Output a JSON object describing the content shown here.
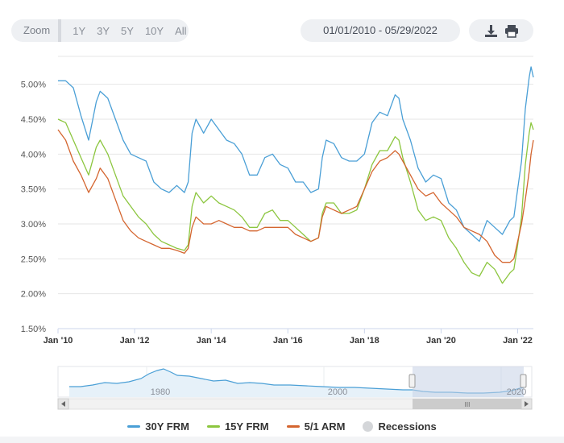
{
  "toolbar": {
    "zoom_label": "Zoom",
    "zoom_options": [
      "1Y",
      "3Y",
      "5Y",
      "10Y",
      "All"
    ],
    "date_range": "01/01/2010 - 05/29/2022",
    "download_icon": "download-icon",
    "print_icon": "print-icon"
  },
  "navigator": {
    "year_labels": [
      "1980",
      "2000",
      "2020"
    ],
    "scrollbar_grip": "III"
  },
  "legend": {
    "recessions_label": "Recessions",
    "recessions_color": "#d4d6d9"
  },
  "chart_data": {
    "type": "line",
    "title": "",
    "xlabel": "",
    "ylabel": "",
    "x_range": [
      2010.0,
      2022.41
    ],
    "ylim": [
      1.5,
      5.4
    ],
    "yticks": [
      1.5,
      2.0,
      2.5,
      3.0,
      3.5,
      4.0,
      4.5,
      5.0
    ],
    "ytick_labels": [
      "1.50%",
      "2.00%",
      "2.50%",
      "3.00%",
      "3.50%",
      "4.00%",
      "4.50%",
      "5.00%"
    ],
    "xticks": [
      2010,
      2012,
      2014,
      2016,
      2018,
      2020,
      2022
    ],
    "xtick_labels": [
      "Jan '10",
      "Jan '12",
      "Jan '14",
      "Jan '16",
      "Jan '18",
      "Jan '20",
      "Jan '22"
    ],
    "grid": true,
    "series": [
      {
        "name": "30Y FRM",
        "color": "#4a9fd6",
        "points": [
          [
            2010.0,
            5.05
          ],
          [
            2010.2,
            5.05
          ],
          [
            2010.4,
            4.95
          ],
          [
            2010.6,
            4.55
          ],
          [
            2010.8,
            4.2
          ],
          [
            2011.0,
            4.75
          ],
          [
            2011.1,
            4.9
          ],
          [
            2011.3,
            4.8
          ],
          [
            2011.5,
            4.5
          ],
          [
            2011.7,
            4.2
          ],
          [
            2011.9,
            4.0
          ],
          [
            2012.1,
            3.95
          ],
          [
            2012.3,
            3.9
          ],
          [
            2012.5,
            3.6
          ],
          [
            2012.7,
            3.5
          ],
          [
            2012.9,
            3.45
          ],
          [
            2013.1,
            3.55
          ],
          [
            2013.3,
            3.45
          ],
          [
            2013.4,
            3.6
          ],
          [
            2013.5,
            4.3
          ],
          [
            2013.6,
            4.5
          ],
          [
            2013.8,
            4.3
          ],
          [
            2014.0,
            4.5
          ],
          [
            2014.2,
            4.35
          ],
          [
            2014.4,
            4.2
          ],
          [
            2014.6,
            4.15
          ],
          [
            2014.8,
            4.0
          ],
          [
            2015.0,
            3.7
          ],
          [
            2015.2,
            3.7
          ],
          [
            2015.4,
            3.95
          ],
          [
            2015.6,
            4.0
          ],
          [
            2015.8,
            3.85
          ],
          [
            2016.0,
            3.8
          ],
          [
            2016.2,
            3.6
          ],
          [
            2016.4,
            3.6
          ],
          [
            2016.6,
            3.45
          ],
          [
            2016.8,
            3.5
          ],
          [
            2016.9,
            3.95
          ],
          [
            2017.0,
            4.2
          ],
          [
            2017.2,
            4.15
          ],
          [
            2017.4,
            3.95
          ],
          [
            2017.6,
            3.9
          ],
          [
            2017.8,
            3.9
          ],
          [
            2018.0,
            4.0
          ],
          [
            2018.2,
            4.45
          ],
          [
            2018.4,
            4.6
          ],
          [
            2018.6,
            4.55
          ],
          [
            2018.8,
            4.85
          ],
          [
            2018.9,
            4.8
          ],
          [
            2019.0,
            4.5
          ],
          [
            2019.2,
            4.2
          ],
          [
            2019.4,
            3.8
          ],
          [
            2019.6,
            3.6
          ],
          [
            2019.8,
            3.7
          ],
          [
            2020.0,
            3.65
          ],
          [
            2020.2,
            3.3
          ],
          [
            2020.4,
            3.2
          ],
          [
            2020.6,
            2.95
          ],
          [
            2020.8,
            2.85
          ],
          [
            2021.0,
            2.75
          ],
          [
            2021.2,
            3.05
          ],
          [
            2021.4,
            2.95
          ],
          [
            2021.6,
            2.85
          ],
          [
            2021.8,
            3.05
          ],
          [
            2021.9,
            3.1
          ],
          [
            2022.0,
            3.5
          ],
          [
            2022.1,
            3.9
          ],
          [
            2022.2,
            4.65
          ],
          [
            2022.3,
            5.1
          ],
          [
            2022.35,
            5.25
          ],
          [
            2022.41,
            5.1
          ]
        ]
      },
      {
        "name": "15Y FRM",
        "color": "#8cc63f",
        "points": [
          [
            2010.0,
            4.5
          ],
          [
            2010.2,
            4.45
          ],
          [
            2010.4,
            4.2
          ],
          [
            2010.6,
            3.95
          ],
          [
            2010.8,
            3.7
          ],
          [
            2011.0,
            4.1
          ],
          [
            2011.1,
            4.2
          ],
          [
            2011.3,
            4.0
          ],
          [
            2011.5,
            3.7
          ],
          [
            2011.7,
            3.4
          ],
          [
            2011.9,
            3.25
          ],
          [
            2012.1,
            3.1
          ],
          [
            2012.3,
            3.0
          ],
          [
            2012.5,
            2.85
          ],
          [
            2012.7,
            2.75
          ],
          [
            2012.9,
            2.7
          ],
          [
            2013.1,
            2.65
          ],
          [
            2013.3,
            2.62
          ],
          [
            2013.4,
            2.7
          ],
          [
            2013.5,
            3.25
          ],
          [
            2013.6,
            3.45
          ],
          [
            2013.8,
            3.3
          ],
          [
            2014.0,
            3.4
          ],
          [
            2014.2,
            3.3
          ],
          [
            2014.4,
            3.25
          ],
          [
            2014.6,
            3.2
          ],
          [
            2014.8,
            3.1
          ],
          [
            2015.0,
            2.95
          ],
          [
            2015.2,
            2.95
          ],
          [
            2015.4,
            3.15
          ],
          [
            2015.6,
            3.2
          ],
          [
            2015.8,
            3.05
          ],
          [
            2016.0,
            3.05
          ],
          [
            2016.2,
            2.95
          ],
          [
            2016.4,
            2.85
          ],
          [
            2016.6,
            2.75
          ],
          [
            2016.8,
            2.8
          ],
          [
            2016.9,
            3.15
          ],
          [
            2017.0,
            3.3
          ],
          [
            2017.2,
            3.3
          ],
          [
            2017.4,
            3.15
          ],
          [
            2017.6,
            3.15
          ],
          [
            2017.8,
            3.2
          ],
          [
            2018.0,
            3.5
          ],
          [
            2018.2,
            3.85
          ],
          [
            2018.4,
            4.05
          ],
          [
            2018.6,
            4.05
          ],
          [
            2018.8,
            4.25
          ],
          [
            2018.9,
            4.2
          ],
          [
            2019.0,
            3.95
          ],
          [
            2019.2,
            3.6
          ],
          [
            2019.4,
            3.2
          ],
          [
            2019.6,
            3.05
          ],
          [
            2019.8,
            3.1
          ],
          [
            2020.0,
            3.05
          ],
          [
            2020.2,
            2.8
          ],
          [
            2020.4,
            2.65
          ],
          [
            2020.6,
            2.45
          ],
          [
            2020.8,
            2.3
          ],
          [
            2021.0,
            2.25
          ],
          [
            2021.2,
            2.45
          ],
          [
            2021.4,
            2.35
          ],
          [
            2021.6,
            2.15
          ],
          [
            2021.8,
            2.3
          ],
          [
            2021.9,
            2.35
          ],
          [
            2022.0,
            2.7
          ],
          [
            2022.1,
            3.1
          ],
          [
            2022.2,
            3.85
          ],
          [
            2022.3,
            4.3
          ],
          [
            2022.35,
            4.45
          ],
          [
            2022.41,
            4.35
          ]
        ]
      },
      {
        "name": "5/1 ARM",
        "color": "#d4652f",
        "points": [
          [
            2010.0,
            4.35
          ],
          [
            2010.2,
            4.2
          ],
          [
            2010.4,
            3.9
          ],
          [
            2010.6,
            3.7
          ],
          [
            2010.8,
            3.45
          ],
          [
            2011.0,
            3.65
          ],
          [
            2011.1,
            3.8
          ],
          [
            2011.3,
            3.65
          ],
          [
            2011.5,
            3.35
          ],
          [
            2011.7,
            3.05
          ],
          [
            2011.9,
            2.9
          ],
          [
            2012.1,
            2.8
          ],
          [
            2012.3,
            2.75
          ],
          [
            2012.5,
            2.7
          ],
          [
            2012.7,
            2.65
          ],
          [
            2012.9,
            2.65
          ],
          [
            2013.1,
            2.62
          ],
          [
            2013.3,
            2.58
          ],
          [
            2013.4,
            2.65
          ],
          [
            2013.5,
            2.95
          ],
          [
            2013.6,
            3.1
          ],
          [
            2013.8,
            3.0
          ],
          [
            2014.0,
            3.0
          ],
          [
            2014.2,
            3.05
          ],
          [
            2014.4,
            3.0
          ],
          [
            2014.6,
            2.95
          ],
          [
            2014.8,
            2.95
          ],
          [
            2015.0,
            2.9
          ],
          [
            2015.2,
            2.9
          ],
          [
            2015.4,
            2.95
          ],
          [
            2015.6,
            2.95
          ],
          [
            2015.8,
            2.95
          ],
          [
            2016.0,
            2.95
          ],
          [
            2016.2,
            2.85
          ],
          [
            2016.4,
            2.8
          ],
          [
            2016.6,
            2.75
          ],
          [
            2016.8,
            2.8
          ],
          [
            2016.9,
            3.1
          ],
          [
            2017.0,
            3.25
          ],
          [
            2017.2,
            3.2
          ],
          [
            2017.4,
            3.15
          ],
          [
            2017.6,
            3.2
          ],
          [
            2017.8,
            3.25
          ],
          [
            2018.0,
            3.5
          ],
          [
            2018.2,
            3.75
          ],
          [
            2018.4,
            3.9
          ],
          [
            2018.6,
            3.95
          ],
          [
            2018.8,
            4.05
          ],
          [
            2018.9,
            4.0
          ],
          [
            2019.0,
            3.9
          ],
          [
            2019.2,
            3.7
          ],
          [
            2019.4,
            3.5
          ],
          [
            2019.6,
            3.4
          ],
          [
            2019.8,
            3.45
          ],
          [
            2020.0,
            3.3
          ],
          [
            2020.2,
            3.2
          ],
          [
            2020.4,
            3.1
          ],
          [
            2020.6,
            2.95
          ],
          [
            2020.8,
            2.9
          ],
          [
            2021.0,
            2.85
          ],
          [
            2021.2,
            2.75
          ],
          [
            2021.4,
            2.55
          ],
          [
            2021.6,
            2.45
          ],
          [
            2021.8,
            2.45
          ],
          [
            2021.9,
            2.5
          ],
          [
            2022.0,
            2.75
          ],
          [
            2022.1,
            3.0
          ],
          [
            2022.2,
            3.35
          ],
          [
            2022.3,
            3.75
          ],
          [
            2022.35,
            4.0
          ],
          [
            2022.41,
            4.2
          ]
        ]
      }
    ]
  }
}
